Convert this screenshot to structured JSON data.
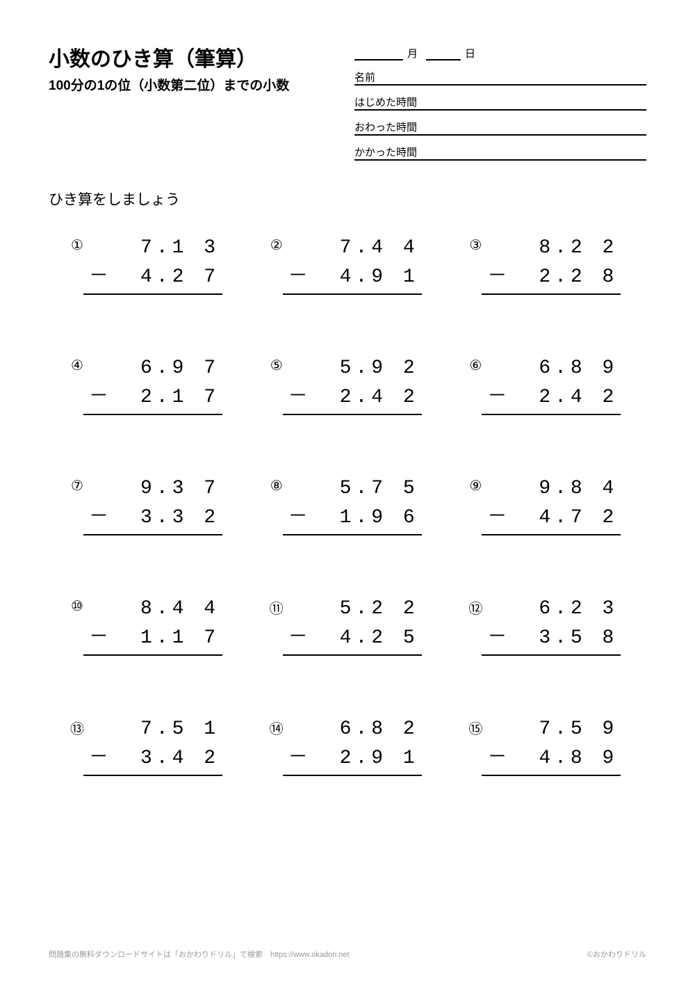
{
  "title": "小数のひき算（筆算）",
  "subtitle": "100分の1の位（小数第二位）までの小数",
  "date_month_label": "月",
  "date_day_label": "日",
  "info_labels": {
    "name": "名前",
    "start_time": "はじめた時間",
    "end_time": "おわった時間",
    "duration": "かかった時間"
  },
  "instruction": "ひき算をしましょう",
  "problems": [
    {
      "num": "①",
      "minuend": "7.1 3",
      "subtrahend": "4.2 7"
    },
    {
      "num": "②",
      "minuend": "7.4 4",
      "subtrahend": "4.9 1"
    },
    {
      "num": "③",
      "minuend": "8.2 2",
      "subtrahend": "2.2 8"
    },
    {
      "num": "④",
      "minuend": "6.9 7",
      "subtrahend": "2.1 7"
    },
    {
      "num": "⑤",
      "minuend": "5.9 2",
      "subtrahend": "2.4 2"
    },
    {
      "num": "⑥",
      "minuend": "6.8 9",
      "subtrahend": "2.4 2"
    },
    {
      "num": "⑦",
      "minuend": "9.3 7",
      "subtrahend": "3.3 2"
    },
    {
      "num": "⑧",
      "minuend": "5.7 5",
      "subtrahend": "1.9 6"
    },
    {
      "num": "⑨",
      "minuend": "9.8 4",
      "subtrahend": "4.7 2"
    },
    {
      "num": "⑩",
      "minuend": "8.4 4",
      "subtrahend": "1.1 7"
    },
    {
      "num": "⑪",
      "minuend": "5.2 2",
      "subtrahend": "4.2 5"
    },
    {
      "num": "⑫",
      "minuend": "6.2 3",
      "subtrahend": "3.5 8"
    },
    {
      "num": "⑬",
      "minuend": "7.5 1",
      "subtrahend": "3.4 2"
    },
    {
      "num": "⑭",
      "minuend": "6.8 2",
      "subtrahend": "2.9 1"
    },
    {
      "num": "⑮",
      "minuend": "7.5 9",
      "subtrahend": "4.8 9"
    }
  ],
  "minus": "－",
  "footer_left": "問題集の無料ダウンロードサイトは「おかわりドリル」で検索　https://www.okadori.net",
  "footer_right": "©おかわりドリル",
  "colors": {
    "background": "#ffffff",
    "text": "#000000",
    "footer_text": "#999999",
    "border": "#000000"
  },
  "typography": {
    "title_fontsize": 30,
    "subtitle_fontsize": 19,
    "instruction_fontsize": 21,
    "math_fontsize": 28,
    "label_fontsize": 15,
    "footer_fontsize": 11
  }
}
